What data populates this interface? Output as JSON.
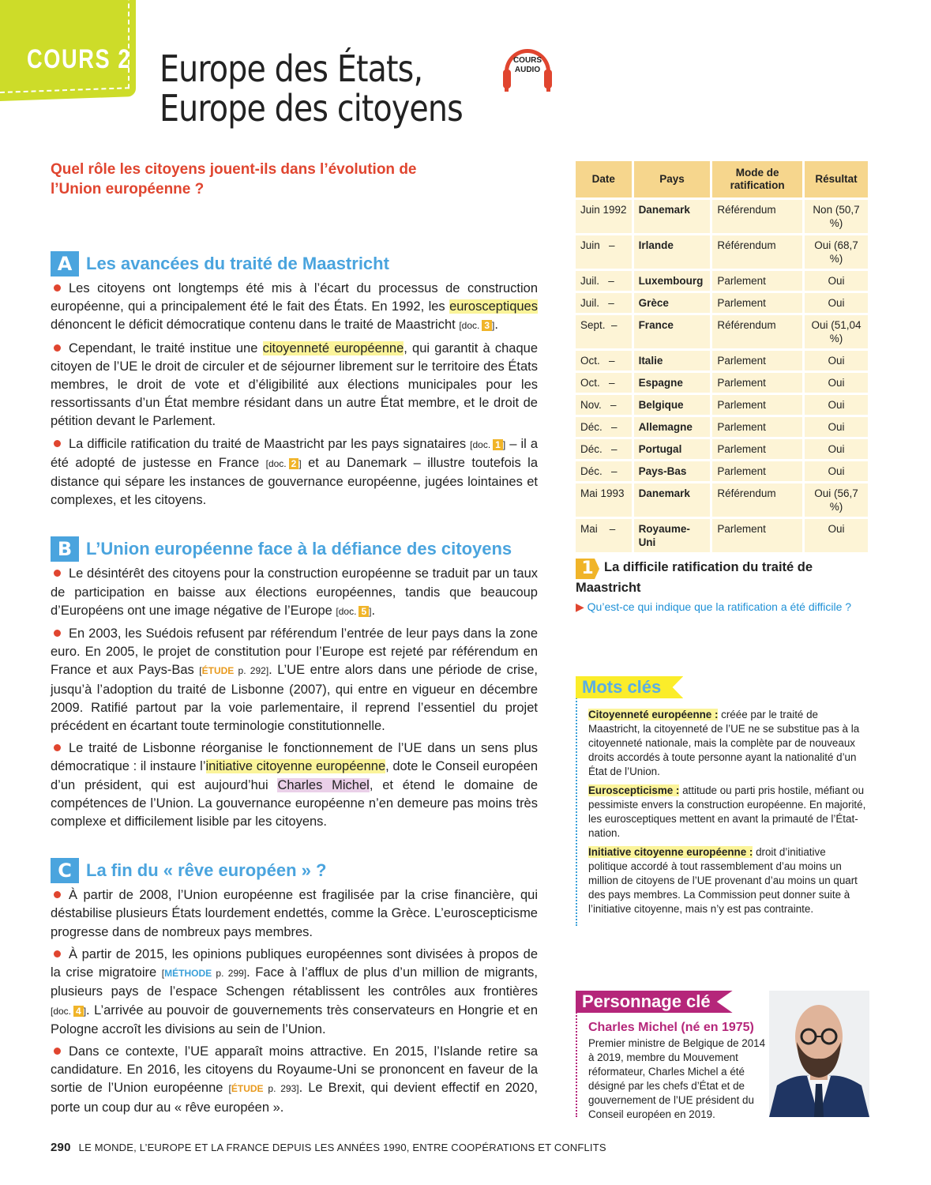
{
  "header": {
    "tab": "COURS 2",
    "title_line1": "Europe des États,",
    "title_line2": "Europe des citoyens",
    "audio_label": "COURS AUDIO",
    "question": "Quel rôle les citoyens jouent-ils dans l’évolution de l’Union européenne ?"
  },
  "colors": {
    "accent_green": "#cddc29",
    "red": "#e0452f",
    "blue": "#4aa4de",
    "table_head": "#f6d68d",
    "table_cell": "#fdf4d6",
    "highlight": "#fbf49a",
    "magenta": "#b5267a"
  },
  "sections": [
    {
      "letter": "A",
      "heading": "Les avancées du traité de Maastricht",
      "paragraphs": [
        [
          {
            "t": "Les citoyens ont longtemps été mis à l’écart du processus de construction européenne, qui a principalement été le fait des États. En 1992, les "
          },
          {
            "t": "eurosceptiques",
            "k": "hl"
          },
          {
            "t": " dénoncent le déficit démocratique contenu dans le traité de Maastricht "
          },
          {
            "t": "[doc.",
            "k": "doc"
          },
          {
            "t": "3",
            "k": "num"
          },
          {
            "t": "]",
            "k": "doc"
          },
          {
            "t": "."
          }
        ],
        [
          {
            "t": "Cependant, le traité institue une "
          },
          {
            "t": "citoyenneté européenne",
            "k": "hl"
          },
          {
            "t": ", qui garantit à chaque citoyen de l’UE le droit de circuler et de séjourner librement sur le territoire des États membres, le droit de vote et d’éligibilité aux élections municipales pour les ressortissants d’un État membre résidant dans un autre État membre, et le droit de pétition devant le Parlement."
          }
        ],
        [
          {
            "t": "La difficile ratification du traité de Maastricht par les pays signataires "
          },
          {
            "t": "[doc.",
            "k": "doc"
          },
          {
            "t": "1",
            "k": "num"
          },
          {
            "t": "]",
            "k": "doc"
          },
          {
            "t": " – il a été adopté de justesse en France "
          },
          {
            "t": "[doc.",
            "k": "doc"
          },
          {
            "t": "2",
            "k": "num"
          },
          {
            "t": "]",
            "k": "doc"
          },
          {
            "t": " et au Danemark – illustre toutefois la distance qui sépare les instances de gouvernance européenne, jugées lointaines et complexes, et les citoyens."
          }
        ]
      ]
    },
    {
      "letter": "B",
      "heading": "L’Union européenne face à la défiance des citoyens",
      "paragraphs": [
        [
          {
            "t": "Le désintérêt des citoyens pour la construction européenne se traduit par un taux de participation en baisse aux élections européennes, tandis que beaucoup d’Européens ont une image négative de l’Europe "
          },
          {
            "t": "[doc.",
            "k": "doc"
          },
          {
            "t": "5",
            "k": "num"
          },
          {
            "t": "]",
            "k": "doc"
          },
          {
            "t": "."
          }
        ],
        [
          {
            "t": "En 2003, les Suédois refusent par référendum l’entrée de leur pays dans la zone euro. En 2005, le projet de constitution pour l’Europe est rejeté par référendum en France et aux Pays-Bas "
          },
          {
            "t": "[",
            "k": "ref"
          },
          {
            "t": "ÉTUDE",
            "k": "etude"
          },
          {
            "t": " p. 292]",
            "k": "ref"
          },
          {
            "t": ". L’UE entre alors dans une période de crise, jusqu’à l’adoption du traité de Lisbonne (2007), qui entre en vigueur en décembre 2009. Ratifié partout par la voie parlementaire, il reprend l’essentiel du projet précédent en écartant toute terminologie constitutionnelle."
          }
        ],
        [
          {
            "t": "Le traité de Lisbonne réorganise le fonctionnement de l’UE dans un sens plus démocratique : il instaure l’"
          },
          {
            "t": "initiative citoyenne européenne",
            "k": "hl"
          },
          {
            "t": ", dote le Conseil européen d’un président, qui est aujourd’hui "
          },
          {
            "t": "Charles Michel",
            "k": "pk"
          },
          {
            "t": ", et étend le domaine de compétences de l’Union. La gouvernance européenne n’en demeure pas moins très complexe et difficilement lisible par les citoyens."
          }
        ]
      ]
    },
    {
      "letter": "C",
      "heading": "La fin du « rêve européen » ?",
      "paragraphs": [
        [
          {
            "t": "À partir de 2008, l’Union européenne est fragilisée par la crise financière, qui déstabilise plusieurs États lourdement endettés, comme la Grèce. L’euroscepticisme progresse dans de nombreux pays membres."
          }
        ],
        [
          {
            "t": "À partir de 2015, les opinions publiques européennes sont divisées à propos de la crise migratoire "
          },
          {
            "t": "[",
            "k": "ref"
          },
          {
            "t": "MÉTHODE",
            "k": "meth"
          },
          {
            "t": " p. 299]",
            "k": "ref"
          },
          {
            "t": ". Face à l’afflux de plus d’un million de migrants, plusieurs pays de l’espace Schengen rétablissent les contrôles aux frontières "
          },
          {
            "t": "[doc.",
            "k": "doc"
          },
          {
            "t": "4",
            "k": "num"
          },
          {
            "t": "]",
            "k": "doc"
          },
          {
            "t": ". L’arrivée au pouvoir de gouvernements très conservateurs en Hongrie et en Pologne accroît les divisions au sein de l’Union."
          }
        ],
        [
          {
            "t": "Dans ce contexte, l’UE apparaît moins attractive. En 2015, l’Islande retire sa candidature. En 2016, les citoyens du Royaume-Uni se prononcent en faveur de la sortie de l’Union européenne "
          },
          {
            "t": "[",
            "k": "ref"
          },
          {
            "t": "ÉTUDE",
            "k": "etude"
          },
          {
            "t": " p. 293]",
            "k": "ref"
          },
          {
            "t": ". Le Brexit, qui devient effectif en 2020, porte un coup dur au « rêve européen »."
          }
        ]
      ]
    }
  ],
  "table": {
    "headers": [
      "Date",
      "Pays",
      "Mode de ratification",
      "Résultat"
    ],
    "rows": [
      [
        "Juin 1992",
        "Danemark",
        "Référendum",
        "Non (50,7 %)"
      ],
      [
        "Juin   –",
        "Irlande",
        "Référendum",
        "Oui (68,7 %)"
      ],
      [
        "Juil.   –",
        "Luxembourg",
        "Parlement",
        "Oui"
      ],
      [
        "Juil.   –",
        "Grèce",
        "Parlement",
        "Oui"
      ],
      [
        "Sept.  –",
        "France",
        "Référendum",
        "Oui (51,04 %)"
      ],
      [
        "Oct.   –",
        "Italie",
        "Parlement",
        "Oui"
      ],
      [
        "Oct.   –",
        "Espagne",
        "Parlement",
        "Oui"
      ],
      [
        "Nov.   –",
        "Belgique",
        "Parlement",
        "Oui"
      ],
      [
        "Déc.   –",
        "Allemagne",
        "Parlement",
        "Oui"
      ],
      [
        "Déc.   –",
        "Portugal",
        "Parlement",
        "Oui"
      ],
      [
        "Déc.   –",
        "Pays-Bas",
        "Parlement",
        "Oui"
      ],
      [
        "Mai 1993",
        "Danemark",
        "Référendum",
        "Oui (56,7 %)"
      ],
      [
        "Mai    –",
        "Royaume-Uni",
        "Parlement",
        "Oui"
      ]
    ]
  },
  "doc1": {
    "number": "1",
    "title": "La difficile ratification du traité de Maastricht",
    "question": "Qu’est-ce qui indique que la ratification a été difficile ?"
  },
  "keywords": {
    "label": "Mots clés",
    "items": [
      {
        "term": "Citoyenneté européenne :",
        "def": " créée par le traité de Maastricht, la citoyenneté de l’UE ne se substitue pas à la citoyenneté nationale, mais la complète par de nouveaux droits accordés à toute personne ayant la nationalité d’un État de l’Union."
      },
      {
        "term": "Euroscepticisme :",
        "def": " attitude ou parti pris hostile, méfiant ou pessimiste envers la construction européenne. En majorité, les eurosceptiques mettent en avant la primauté de l’État-nation."
      },
      {
        "term": "Initiative citoyenne européenne :",
        "def": " droit d’initiative politique accordé à tout rassemblement d’au moins un million de citoyens de l’UE provenant d’au moins un quart des pays membres. La Commission peut donner suite à l’initiative citoyenne, mais n’y est pas contrainte."
      }
    ]
  },
  "person": {
    "label": "Personnage clé",
    "name": "Charles Michel (né en 1975)",
    "desc": "Premier ministre de Belgique de 2014 à 2019, membre du Mouvement réformateur, Charles Michel a été désigné par les chefs d’État et de gouvernement de l’UE président du Conseil européen en 2019."
  },
  "footer": {
    "page": "290",
    "text": "LE MONDE, L’EUROPE ET LA FRANCE DEPUIS LES ANNÉES 1990, ENTRE COOPÉRATIONS ET CONFLITS"
  }
}
